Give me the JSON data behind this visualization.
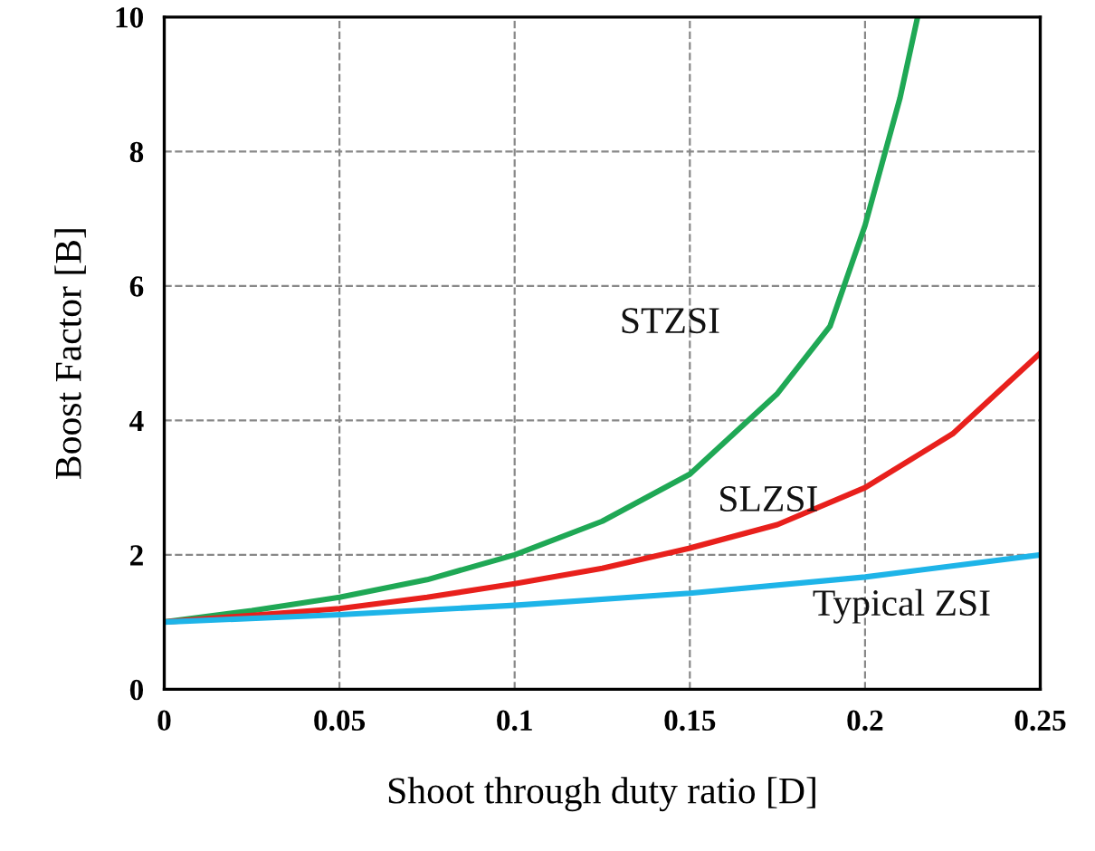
{
  "chart_data": {
    "type": "line",
    "xlabel": "Shoot through duty ratio [D]",
    "ylabel": "Boost Factor [B]",
    "xlim": [
      0,
      0.25
    ],
    "xticks": [
      0,
      0.05,
      0.1,
      0.15,
      0.2,
      0.25
    ],
    "ylim": [
      0,
      10
    ],
    "yticks": [
      0,
      2,
      4,
      6,
      8,
      10
    ],
    "grid": true,
    "legend": false,
    "marker": "none",
    "line_style": "solid",
    "series": [
      {
        "name": "STZSI",
        "color": "#1fa855",
        "x": [
          0,
          0.025,
          0.05,
          0.075,
          0.1,
          0.125,
          0.15,
          0.175,
          0.19,
          0.2,
          0.21,
          0.215
        ],
        "values": [
          1,
          1.17,
          1.37,
          1.63,
          2.0,
          2.5,
          3.2,
          4.4,
          5.4,
          6.9,
          8.8,
          10
        ]
      },
      {
        "name": "SLZSI",
        "color": "#e8201c",
        "x": [
          0,
          0.025,
          0.05,
          0.075,
          0.1,
          0.125,
          0.15,
          0.175,
          0.2,
          0.225,
          0.25
        ],
        "values": [
          1,
          1.1,
          1.2,
          1.37,
          1.57,
          1.8,
          2.1,
          2.45,
          3.0,
          3.8,
          5.0
        ]
      },
      {
        "name": "Typical ZSI",
        "color": "#1eb4e8",
        "x": [
          0,
          0.05,
          0.1,
          0.15,
          0.2,
          0.25
        ],
        "values": [
          1,
          1.11,
          1.25,
          1.43,
          1.67,
          2.0
        ]
      }
    ]
  }
}
